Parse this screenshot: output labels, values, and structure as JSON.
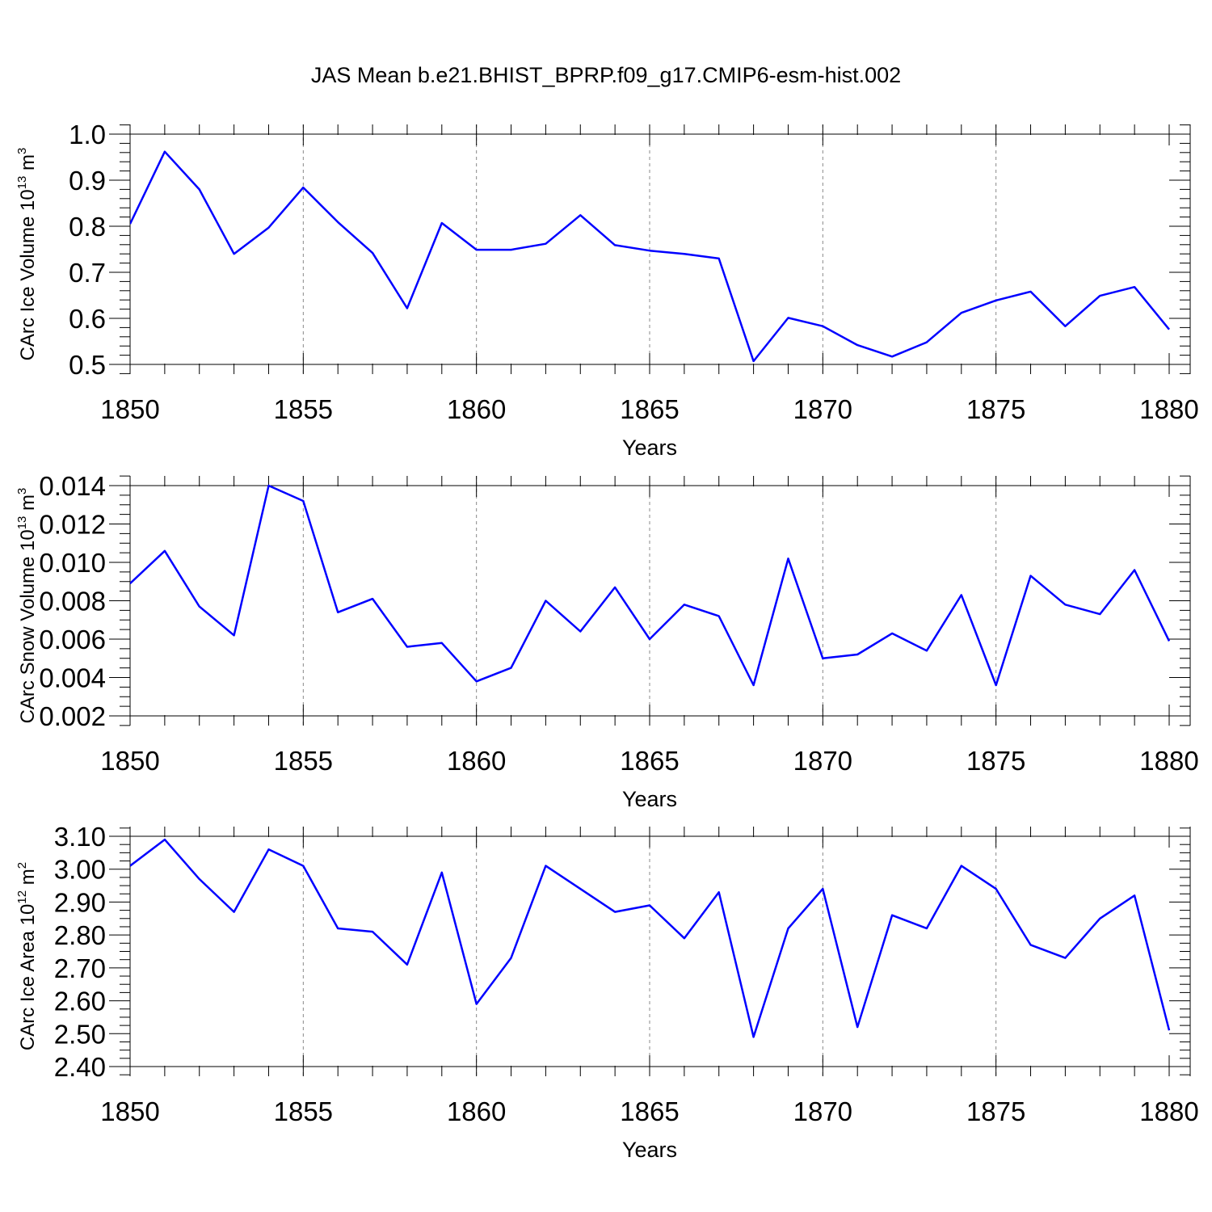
{
  "figure": {
    "title": "JAS Mean b.e21.BHIST_BPRP.f09_g17.CMIP6-esm-hist.002",
    "line_color": "#0000ff"
  },
  "chart_data": [
    {
      "type": "line",
      "title": "",
      "xlabel": "Years",
      "ylabel": "CArc Ice Volume 10",
      "ylabel_exponent": "13",
      "ylabel_unit": "m",
      "ylabel_unit_exponent": "3",
      "xlim": [
        1850,
        1880
      ],
      "ylim": [
        0.5,
        1.0
      ],
      "x_ticks": [
        1850,
        1855,
        1860,
        1865,
        1870,
        1875,
        1880
      ],
      "y_ticks": [
        0.5,
        0.6,
        0.7,
        0.8,
        0.9,
        1.0
      ],
      "y_tick_labels": [
        "0.5",
        "0.6",
        "0.7",
        "0.8",
        "0.9",
        "1.0"
      ],
      "y_tick_step": 0.1,
      "y_minor_per_major": 5,
      "grid_x": [
        1855,
        1860,
        1865,
        1870,
        1875
      ],
      "x": [
        1850,
        1851,
        1852,
        1853,
        1854,
        1855,
        1856,
        1857,
        1858,
        1859,
        1860,
        1861,
        1862,
        1863,
        1864,
        1865,
        1866,
        1867,
        1868,
        1869,
        1870,
        1871,
        1872,
        1873,
        1874,
        1875,
        1876,
        1877,
        1878,
        1879,
        1880
      ],
      "series": [
        {
          "name": "CArc Ice Volume",
          "values": [
            0.805,
            0.962,
            0.88,
            0.74,
            0.797,
            0.884,
            0.809,
            0.742,
            0.622,
            0.807,
            0.749,
            0.749,
            0.762,
            0.824,
            0.759,
            0.747,
            0.74,
            0.73,
            0.507,
            0.601,
            0.583,
            0.542,
            0.517,
            0.548,
            0.612,
            0.639,
            0.658,
            0.583,
            0.649,
            0.668,
            0.576
          ]
        }
      ]
    },
    {
      "type": "line",
      "title": "",
      "xlabel": "Years",
      "ylabel": "CArc Snow Volume 10",
      "ylabel_exponent": "13",
      "ylabel_unit": "m",
      "ylabel_unit_exponent": "3",
      "xlim": [
        1850,
        1880
      ],
      "ylim": [
        0.002,
        0.014
      ],
      "x_ticks": [
        1850,
        1855,
        1860,
        1865,
        1870,
        1875,
        1880
      ],
      "y_ticks": [
        0.002,
        0.004,
        0.006,
        0.008,
        0.01,
        0.012,
        0.014
      ],
      "y_tick_labels": [
        "0.002",
        "0.004",
        "0.006",
        "0.008",
        "0.010",
        "0.012",
        "0.014"
      ],
      "y_tick_step": 0.002,
      "y_minor_per_major": 4,
      "grid_x": [
        1855,
        1860,
        1865,
        1870,
        1875
      ],
      "x": [
        1850,
        1851,
        1852,
        1853,
        1854,
        1855,
        1856,
        1857,
        1858,
        1859,
        1860,
        1861,
        1862,
        1863,
        1864,
        1865,
        1866,
        1867,
        1868,
        1869,
        1870,
        1871,
        1872,
        1873,
        1874,
        1875,
        1876,
        1877,
        1878,
        1879,
        1880
      ],
      "series": [
        {
          "name": "CArc Snow Volume",
          "values": [
            0.0089,
            0.0106,
            0.0077,
            0.0062,
            0.014,
            0.0132,
            0.0074,
            0.0081,
            0.0056,
            0.0058,
            0.0038,
            0.0045,
            0.008,
            0.0064,
            0.0087,
            0.006,
            0.0078,
            0.0072,
            0.0036,
            0.0102,
            0.005,
            0.0052,
            0.0063,
            0.0054,
            0.0083,
            0.0036,
            0.0093,
            0.0078,
            0.0073,
            0.0096,
            0.0059
          ]
        }
      ]
    },
    {
      "type": "line",
      "title": "",
      "xlabel": "Years",
      "ylabel": "CArc Ice Area 10",
      "ylabel_exponent": "12",
      "ylabel_unit": "m",
      "ylabel_unit_exponent": "2",
      "xlim": [
        1850,
        1880
      ],
      "ylim": [
        2.4,
        3.1
      ],
      "x_ticks": [
        1850,
        1855,
        1860,
        1865,
        1870,
        1875,
        1880
      ],
      "y_ticks": [
        2.4,
        2.5,
        2.6,
        2.7,
        2.8,
        2.9,
        3.0,
        3.1
      ],
      "y_tick_labels": [
        "2.40",
        "2.50",
        "2.60",
        "2.70",
        "2.80",
        "2.90",
        "3.00",
        "3.10"
      ],
      "y_tick_step": 0.1,
      "y_minor_per_major": 4,
      "grid_x": [
        1855,
        1860,
        1865,
        1870,
        1875
      ],
      "x": [
        1850,
        1851,
        1852,
        1853,
        1854,
        1855,
        1856,
        1857,
        1858,
        1859,
        1860,
        1861,
        1862,
        1863,
        1864,
        1865,
        1866,
        1867,
        1868,
        1869,
        1870,
        1871,
        1872,
        1873,
        1874,
        1875,
        1876,
        1877,
        1878,
        1879,
        1880
      ],
      "series": [
        {
          "name": "CArc Ice Area",
          "values": [
            3.01,
            3.09,
            2.97,
            2.87,
            3.06,
            3.01,
            2.82,
            2.81,
            2.71,
            2.99,
            2.59,
            2.73,
            3.01,
            2.94,
            2.87,
            2.89,
            2.79,
            2.93,
            2.49,
            2.82,
            2.94,
            2.52,
            2.86,
            2.82,
            3.01,
            2.94,
            2.77,
            2.73,
            2.85,
            2.92,
            2.51
          ]
        }
      ]
    }
  ]
}
